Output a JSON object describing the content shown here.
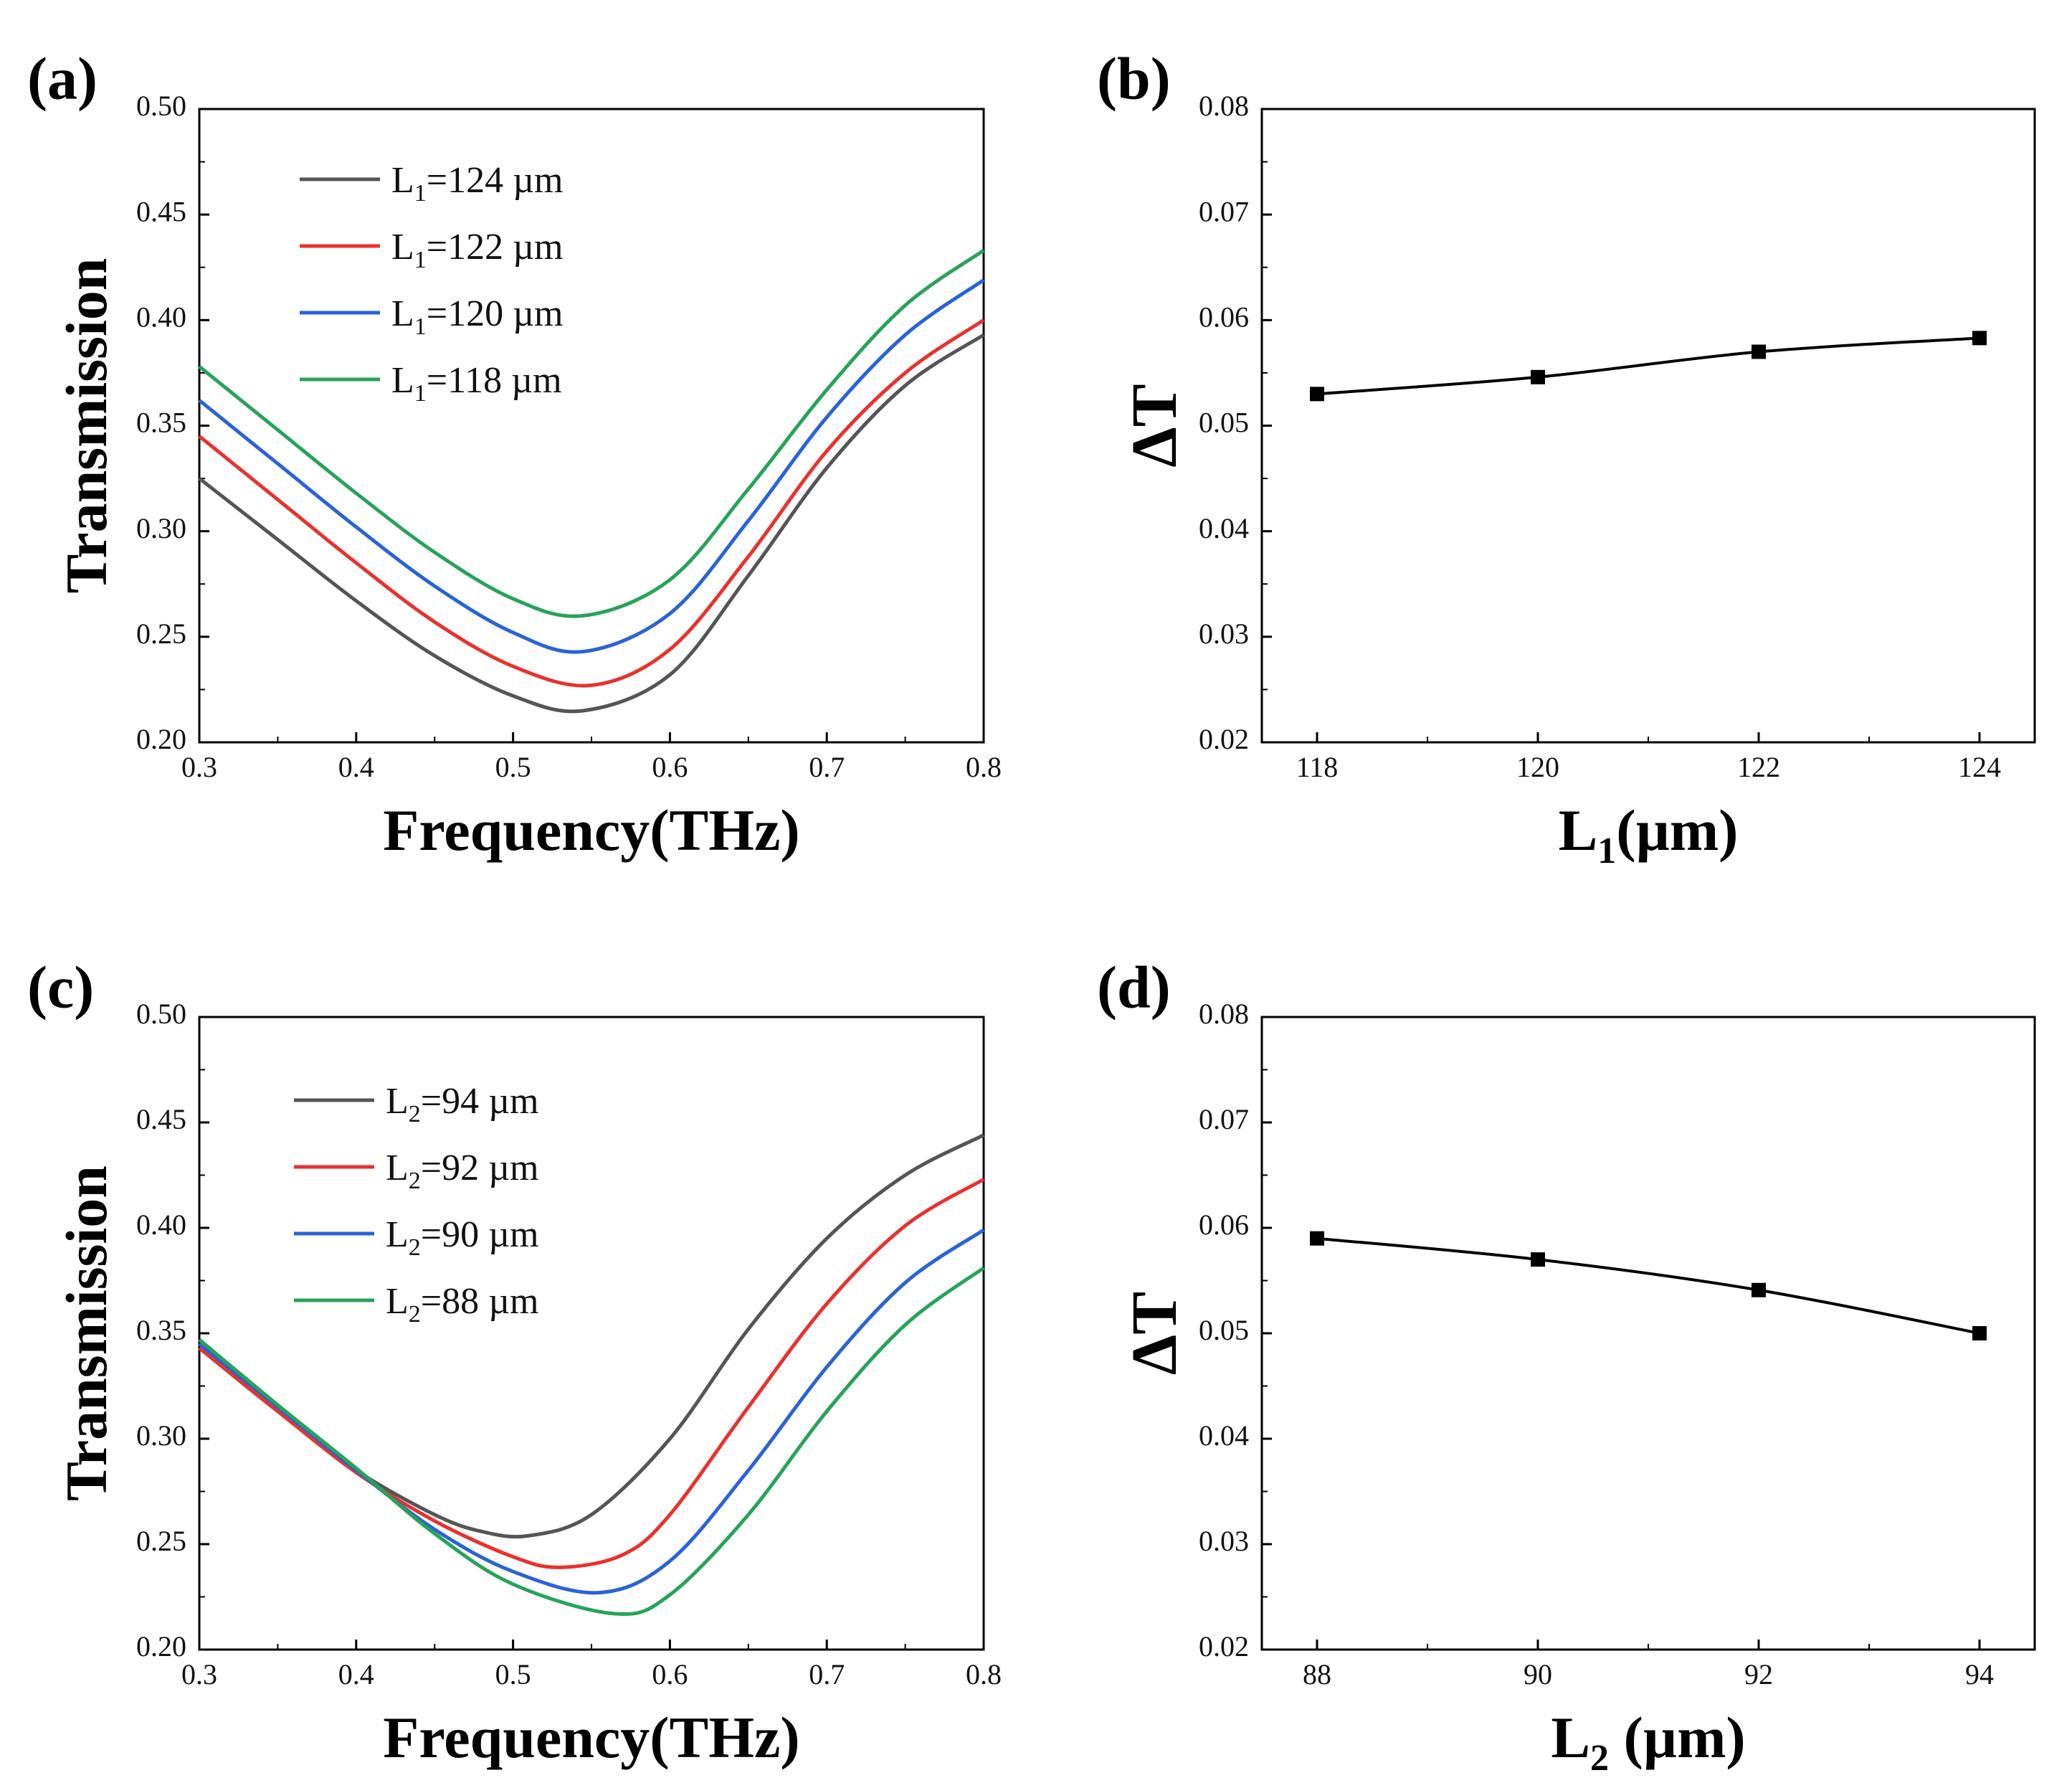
{
  "chart_data": [
    {
      "panel": "(a)",
      "type": "line",
      "xlabel": "Frequency(THz)",
      "ylabel": "Transmission",
      "xlim": [
        0.3,
        0.8
      ],
      "ylim": [
        0.2,
        0.5
      ],
      "xticks": [
        "0.3",
        "0.4",
        "0.5",
        "0.6",
        "0.7",
        "0.8"
      ],
      "yticks": [
        "0.20",
        "0.25",
        "0.30",
        "0.35",
        "0.40",
        "0.45",
        "0.50"
      ],
      "legend_location": "top-left",
      "series": [
        {
          "name": "L1=124 µm",
          "sym": "L",
          "sub": "1",
          "rest": "=124 µm",
          "color": "#555555",
          "x": [
            0.3,
            0.35,
            0.4,
            0.45,
            0.5,
            0.545,
            0.6,
            0.65,
            0.7,
            0.75,
            0.8
          ],
          "y": [
            0.325,
            0.296,
            0.267,
            0.241,
            0.222,
            0.215,
            0.232,
            0.279,
            0.33,
            0.369,
            0.393
          ]
        },
        {
          "name": "L1=122 µm",
          "sym": "L",
          "sub": "1",
          "rest": "=122 µm",
          "color": "#e8322e",
          "x": [
            0.3,
            0.35,
            0.4,
            0.45,
            0.5,
            0.55,
            0.6,
            0.65,
            0.7,
            0.75,
            0.8
          ],
          "y": [
            0.345,
            0.315,
            0.285,
            0.257,
            0.236,
            0.227,
            0.244,
            0.288,
            0.338,
            0.375,
            0.4
          ]
        },
        {
          "name": "L1=120 µm",
          "sym": "L",
          "sub": "1",
          "rest": "=120 µm",
          "color": "#2a63d6",
          "x": [
            0.3,
            0.35,
            0.4,
            0.45,
            0.5,
            0.545,
            0.6,
            0.65,
            0.7,
            0.75,
            0.8
          ],
          "y": [
            0.362,
            0.332,
            0.302,
            0.274,
            0.252,
            0.243,
            0.261,
            0.305,
            0.354,
            0.393,
            0.419
          ]
        },
        {
          "name": "L1=118 µm",
          "sym": "L",
          "sub": "1",
          "rest": "=118 µm",
          "color": "#27a35a",
          "x": [
            0.3,
            0.35,
            0.4,
            0.45,
            0.5,
            0.545,
            0.6,
            0.65,
            0.7,
            0.75,
            0.8
          ],
          "y": [
            0.378,
            0.348,
            0.318,
            0.29,
            0.268,
            0.26,
            0.277,
            0.32,
            0.367,
            0.407,
            0.433
          ]
        }
      ]
    },
    {
      "panel": "(b)",
      "type": "line",
      "xlabel": "L1(µm)",
      "xlabel_sym": "L",
      "xlabel_sub": "1",
      "xlabel_rest": "(µm)",
      "ylabel": "ΔT",
      "xlim": [
        117.5,
        124.5
      ],
      "ylim": [
        0.02,
        0.08
      ],
      "xticks": [
        "118",
        "120",
        "122",
        "124"
      ],
      "yticks": [
        "0.02",
        "0.03",
        "0.04",
        "0.05",
        "0.06",
        "0.07",
        "0.08"
      ],
      "series": [
        {
          "name": "ΔT",
          "color": "#000000",
          "marker": "square",
          "x": [
            118,
            120,
            122,
            124
          ],
          "y": [
            0.053,
            0.0546,
            0.057,
            0.0583
          ]
        }
      ]
    },
    {
      "panel": "(c)",
      "type": "line",
      "xlabel": "Frequency(THz)",
      "ylabel": "Transmission",
      "xlim": [
        0.3,
        0.8
      ],
      "ylim": [
        0.2,
        0.5
      ],
      "xticks": [
        "0.3",
        "0.4",
        "0.5",
        "0.6",
        "0.7",
        "0.8"
      ],
      "yticks": [
        "0.20",
        "0.25",
        "0.30",
        "0.35",
        "0.40",
        "0.45",
        "0.50"
      ],
      "legend_location": "top-left",
      "series": [
        {
          "name": "L2=94 µm",
          "sym": "L",
          "sub": "2",
          "rest": "=94 µm",
          "color": "#555555",
          "x": [
            0.3,
            0.35,
            0.4,
            0.45,
            0.48,
            0.51,
            0.55,
            0.6,
            0.65,
            0.7,
            0.75,
            0.8
          ],
          "y": [
            0.343,
            0.313,
            0.285,
            0.264,
            0.256,
            0.254,
            0.264,
            0.3,
            0.352,
            0.395,
            0.425,
            0.444
          ]
        },
        {
          "name": "L2=92 µm",
          "sym": "L",
          "sub": "2",
          "rest": "=92 µm",
          "color": "#e8322e",
          "x": [
            0.3,
            0.35,
            0.4,
            0.45,
            0.5,
            0.53,
            0.57,
            0.6,
            0.65,
            0.7,
            0.75,
            0.8
          ],
          "y": [
            0.343,
            0.313,
            0.284,
            0.261,
            0.244,
            0.239,
            0.245,
            0.264,
            0.315,
            0.364,
            0.401,
            0.423
          ]
        },
        {
          "name": "L2=90 µm",
          "sym": "L",
          "sub": "2",
          "rest": "=90 µm",
          "color": "#2a63d6",
          "x": [
            0.3,
            0.35,
            0.4,
            0.45,
            0.5,
            0.555,
            0.6,
            0.65,
            0.7,
            0.75,
            0.8
          ],
          "y": [
            0.345,
            0.315,
            0.285,
            0.257,
            0.237,
            0.227,
            0.242,
            0.285,
            0.334,
            0.374,
            0.399
          ]
        },
        {
          "name": "L2=88 µm",
          "sym": "L",
          "sub": "2",
          "rest": "=88 µm",
          "color": "#27a35a",
          "x": [
            0.3,
            0.35,
            0.4,
            0.45,
            0.5,
            0.565,
            0.6,
            0.65,
            0.7,
            0.75,
            0.8
          ],
          "y": [
            0.347,
            0.316,
            0.286,
            0.255,
            0.231,
            0.217,
            0.226,
            0.264,
            0.313,
            0.354,
            0.381
          ]
        }
      ]
    },
    {
      "panel": "(d)",
      "type": "line",
      "xlabel": "L2 (µm)",
      "xlabel_sym": "L",
      "xlabel_sub": "2",
      "xlabel_rest": " (µm)",
      "ylabel": "ΔT",
      "xlim": [
        87.5,
        94.5
      ],
      "ylim": [
        0.02,
        0.08
      ],
      "xticks": [
        "88",
        "90",
        "92",
        "94"
      ],
      "yticks": [
        "0.02",
        "0.03",
        "0.04",
        "0.05",
        "0.06",
        "0.07",
        "0.08"
      ],
      "series": [
        {
          "name": "ΔT",
          "color": "#000000",
          "marker": "square",
          "x": [
            88,
            90,
            92,
            94
          ],
          "y": [
            0.059,
            0.057,
            0.0541,
            0.05
          ]
        }
      ]
    }
  ]
}
